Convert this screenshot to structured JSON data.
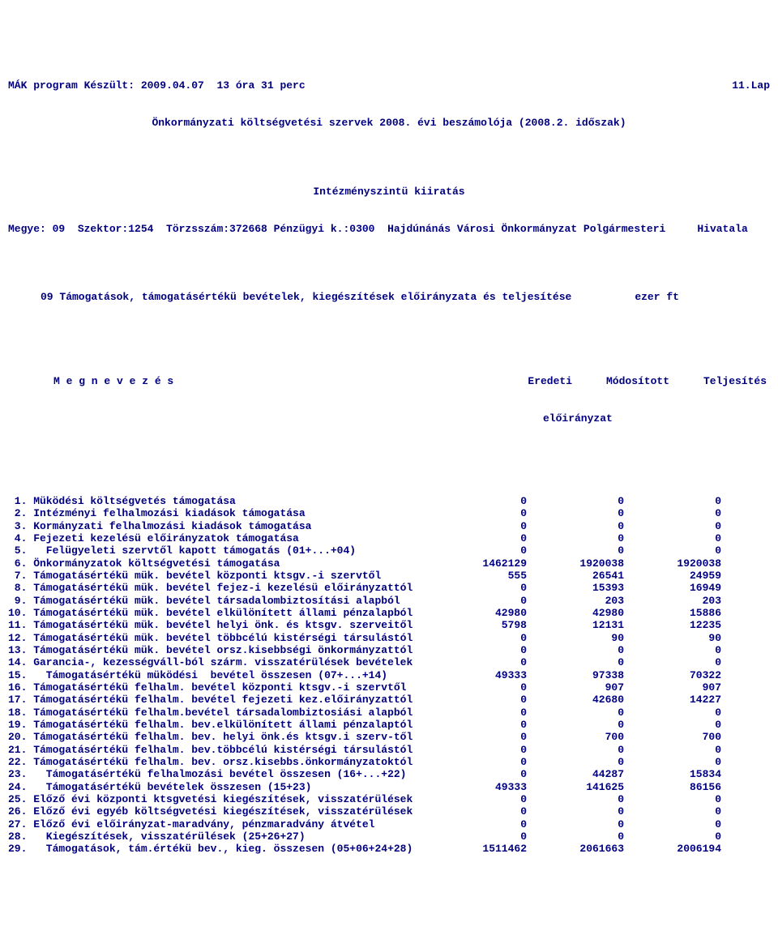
{
  "header": {
    "line1_left": "MÁK program Készült: 2009.04.07  13 óra 31 perc",
    "line1_right": "11.Lap",
    "line2": "Önkormányzati költségvetési szervek 2008. évi beszámolója (2008.2. időszak)",
    "line3": "Intézményszintü kiiratás",
    "line4": "Megye: 09  Szektor:1254  Törzsszám:372668 Pénzügyi k.:0300  Hajdúnánás Városi Önkormányzat Polgármesteri     Hivatala",
    "line5": "09 Támogatások, támogatásértékü bevételek, kiegészítések előirányzata és teljesítése          ezer ft",
    "col_title_left": "M e g n e v e z é s",
    "col1": "Eredeti",
    "col2": "Módosított",
    "col3": "Teljesítés",
    "col_sub": "előirányzat"
  },
  "rows": [
    {
      "label": " 1. Müködési költségvetés támogatása",
      "c1": "0",
      "c2": "0",
      "c3": "0"
    },
    {
      "label": " 2. Intézményi felhalmozási kiadások támogatása",
      "c1": "0",
      "c2": "0",
      "c3": "0"
    },
    {
      "label": " 3. Kormányzati felhalmozási kiadások támogatása",
      "c1": "0",
      "c2": "0",
      "c3": "0"
    },
    {
      "label": " 4. Fejezeti kezelésü előirányzatok támogatása",
      "c1": "0",
      "c2": "0",
      "c3": "0"
    },
    {
      "label": " 5.   Felügyeleti szervtől kapott támogatás (01+...+04)",
      "c1": "0",
      "c2": "0",
      "c3": "0"
    },
    {
      "label": " 6. Önkormányzatok költségvetési támogatása",
      "c1": "1462129",
      "c2": "1920038",
      "c3": "1920038"
    },
    {
      "label": " 7. Támogatásértékü mük. bevétel központi ktsgv.-i szervtől",
      "c1": "555",
      "c2": "26541",
      "c3": "24959"
    },
    {
      "label": " 8. Támogatásértékü mük. bevétel fejez-i kezelésü előirányzattól",
      "c1": "0",
      "c2": "15393",
      "c3": "16949"
    },
    {
      "label": " 9. Támogatásértékü mük. bevétel társadalombiztosítási alapból",
      "c1": "0",
      "c2": "203",
      "c3": "203"
    },
    {
      "label": "10. Támogatásértékü mük. bevétel elkülönített állami pénzalapból",
      "c1": "42980",
      "c2": "42980",
      "c3": "15886"
    },
    {
      "label": "11. Támogatásértékü mük. bevétel helyi önk. és ktsgv. szerveitől",
      "c1": "5798",
      "c2": "12131",
      "c3": "12235"
    },
    {
      "label": "12. Támogatásértékü mük. bevétel többcélú kistérségi társulástól",
      "c1": "0",
      "c2": "90",
      "c3": "90"
    },
    {
      "label": "13. Támogatásértékü mük. bevétel orsz.kisebbségi önkormányzattól",
      "c1": "0",
      "c2": "0",
      "c3": "0"
    },
    {
      "label": "14. Garancia-, kezességváll-ból szárm. visszatérülések bevételek",
      "c1": "0",
      "c2": "0",
      "c3": "0"
    },
    {
      "label": "15.   Támogatásértékü müködési  bevétel összesen (07+...+14)",
      "c1": "49333",
      "c2": "97338",
      "c3": "70322"
    },
    {
      "label": "16. Támogatásértékü felhalm. bevétel központi ktsgv.-i szervtől",
      "c1": "0",
      "c2": "907",
      "c3": "907"
    },
    {
      "label": "17. Támogatásértékü felhalm. bevétel fejezeti kez.előirányzattól",
      "c1": "0",
      "c2": "42680",
      "c3": "14227"
    },
    {
      "label": "18. Támogatásértékü felhalm.bevétel társadalombiztosiási alapból",
      "c1": "0",
      "c2": "0",
      "c3": "0"
    },
    {
      "label": "19. Támogatásértékü felhalm. bev.elkülönített állami pénzalaptól",
      "c1": "0",
      "c2": "0",
      "c3": "0"
    },
    {
      "label": "20. Támogatásértékü felhalm. bev. helyi önk.és ktsgv.i szerv-től",
      "c1": "0",
      "c2": "700",
      "c3": "700"
    },
    {
      "label": "21. Támogatásértékü felhalm. bev.többcélú kistérségi társulástól",
      "c1": "0",
      "c2": "0",
      "c3": "0"
    },
    {
      "label": "22. Támogatásértékü felhalm. bev. orsz.kisebbs.önkormányzatoktól",
      "c1": "0",
      "c2": "0",
      "c3": "0"
    },
    {
      "label": "23.   Támogatásértékü felhalmozási bevétel összesen (16+...+22)",
      "c1": "0",
      "c2": "44287",
      "c3": "15834"
    },
    {
      "label": "24.   Támogatásértékü bevételek összesen (15+23)",
      "c1": "49333",
      "c2": "141625",
      "c3": "86156"
    },
    {
      "label": "25. Előző évi központi ktsgvetési kiegészítések, visszatérülések",
      "c1": "0",
      "c2": "0",
      "c3": "0"
    },
    {
      "label": "26. Előző évi egyéb költségvetési kiegészítések, visszatérülések",
      "c1": "0",
      "c2": "0",
      "c3": "0"
    },
    {
      "label": "27. Előző évi előirányzat-maradvány, pénzmaradvány átvétel",
      "c1": "0",
      "c2": "0",
      "c3": "0"
    },
    {
      "label": "28.   Kiegészítések, visszatérülések (25+26+27)",
      "c1": "0",
      "c2": "0",
      "c3": "0"
    },
    {
      "label": "29.   Támogatások, tám.értékü bev., kieg. összesen (05+06+24+28)",
      "c1": "1511462",
      "c2": "2061663",
      "c3": "2006194"
    }
  ]
}
